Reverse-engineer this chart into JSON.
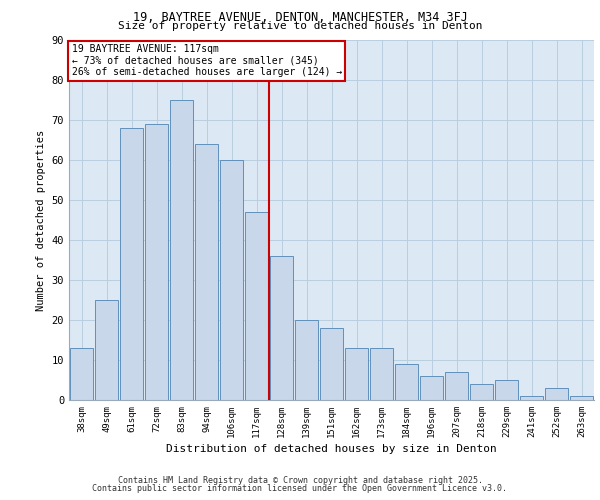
{
  "title_line1": "19, BAYTREE AVENUE, DENTON, MANCHESTER, M34 3FJ",
  "title_line2": "Size of property relative to detached houses in Denton",
  "xlabel": "Distribution of detached houses by size in Denton",
  "ylabel": "Number of detached properties",
  "categories": [
    "38sqm",
    "49sqm",
    "61sqm",
    "72sqm",
    "83sqm",
    "94sqm",
    "106sqm",
    "117sqm",
    "128sqm",
    "139sqm",
    "151sqm",
    "162sqm",
    "173sqm",
    "184sqm",
    "196sqm",
    "207sqm",
    "218sqm",
    "229sqm",
    "241sqm",
    "252sqm",
    "263sqm"
  ],
  "values": [
    13,
    25,
    68,
    69,
    75,
    64,
    60,
    47,
    36,
    20,
    18,
    13,
    13,
    9,
    6,
    7,
    4,
    5,
    1,
    3,
    1
  ],
  "bar_color": "#c8d8ea",
  "bar_edge_color": "#6090bb",
  "annotation_title": "19 BAYTREE AVENUE: 117sqm",
  "annotation_line1": "← 73% of detached houses are smaller (345)",
  "annotation_line2": "26% of semi-detached houses are larger (124) →",
  "annotation_box_facecolor": "#ffffff",
  "annotation_box_edgecolor": "#cc0000",
  "vline_color": "#cc0000",
  "vline_x": 7.5,
  "ylim": [
    0,
    90
  ],
  "yticks": [
    0,
    10,
    20,
    30,
    40,
    50,
    60,
    70,
    80,
    90
  ],
  "grid_color": "#b8cfe0",
  "bg_color": "#dce8f4",
  "footer_line1": "Contains HM Land Registry data © Crown copyright and database right 2025.",
  "footer_line2": "Contains public sector information licensed under the Open Government Licence v3.0."
}
